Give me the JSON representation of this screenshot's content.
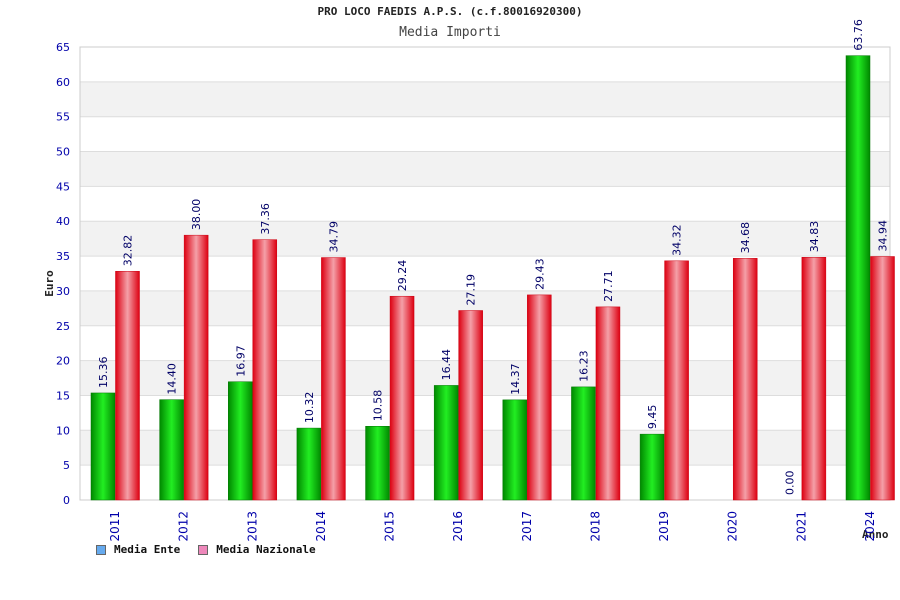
{
  "title": "PRO LOCO FAEDIS A.P.S. (c.f.80016920300)",
  "chart_data": {
    "type": "bar",
    "title": "Media Importi",
    "xlabel": "Anno",
    "ylabel": "Euro",
    "ylim": [
      0,
      65
    ],
    "yticks": [
      0,
      5,
      10,
      15,
      20,
      25,
      30,
      35,
      40,
      45,
      50,
      55,
      60,
      65
    ],
    "categories": [
      "2011",
      "2012",
      "2013",
      "2014",
      "2015",
      "2016",
      "2017",
      "2018",
      "2019",
      "2020",
      "2021",
      "2024"
    ],
    "series": [
      {
        "name": "Media Ente",
        "color": "#00bb00",
        "legend_color": "#66aaee",
        "values": [
          15.36,
          14.4,
          16.97,
          10.32,
          10.58,
          16.44,
          14.37,
          16.23,
          9.45,
          null,
          0.0,
          63.76
        ],
        "labels": [
          "15.36",
          "14.40",
          "16.97",
          "10.32",
          "10.58",
          "16.44",
          "14.37",
          "16.23",
          "9.45",
          "",
          "0.00",
          "63.76"
        ]
      },
      {
        "name": "Media Nazionale",
        "color": "#ee1122",
        "legend_color": "#ee88bb",
        "values": [
          32.82,
          38.0,
          37.36,
          34.79,
          29.24,
          27.19,
          29.43,
          27.71,
          34.32,
          34.68,
          34.83,
          34.94
        ],
        "labels": [
          "32.82",
          "38.00",
          "37.36",
          "34.79",
          "29.24",
          "27.19",
          "29.43",
          "27.71",
          "34.32",
          "34.68",
          "34.83",
          "34.94"
        ]
      }
    ],
    "grid": true,
    "legend_position": "bottom-left"
  }
}
